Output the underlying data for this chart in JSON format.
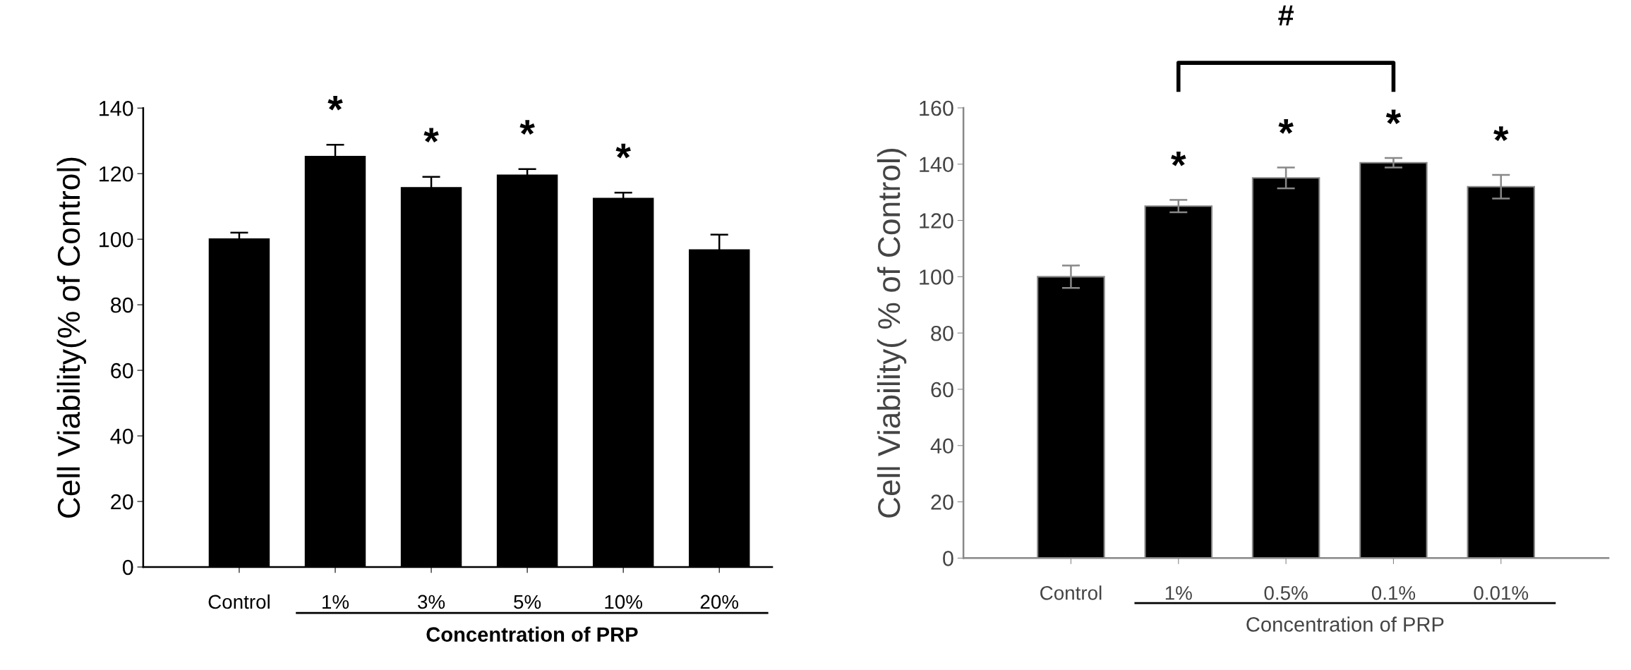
{
  "chart_data": [
    {
      "type": "bar",
      "xlabel": "Concentration of PRP",
      "ylabel": "Cell Viability(% of Control)",
      "categories": [
        "Control",
        "1%",
        "3%",
        "5%",
        "10%",
        "20%"
      ],
      "values": [
        100,
        125.2,
        115.7,
        119.5,
        112.4,
        96.7
      ],
      "errors": [
        2,
        3.6,
        3.3,
        1.9,
        1.8,
        4.7
      ],
      "color": "#000000",
      "ylim": [
        0,
        140
      ],
      "yticks": [
        0,
        20,
        40,
        60,
        80,
        100,
        120,
        140
      ],
      "grid": false,
      "annotations": [
        "*",
        "*",
        "*",
        "*"
      ]
    },
    {
      "type": "bar",
      "xlabel": "Concentration of PRP",
      "ylabel": "Cell Viability( % of Control)",
      "categories": [
        "Control",
        "1%",
        "0.5%",
        "0.1%",
        "0.01%"
      ],
      "values": [
        100,
        125.1,
        135.1,
        140.5,
        132
      ],
      "errors": [
        4,
        2.2,
        3.7,
        1.7,
        4.2
      ],
      "color": "#000000",
      "ylim": [
        0,
        160
      ],
      "yticks": [
        0,
        20,
        40,
        60,
        80,
        100,
        120,
        140,
        160
      ],
      "grid": false,
      "annotations": [
        "*",
        "*",
        "*",
        "*",
        "#"
      ]
    }
  ]
}
